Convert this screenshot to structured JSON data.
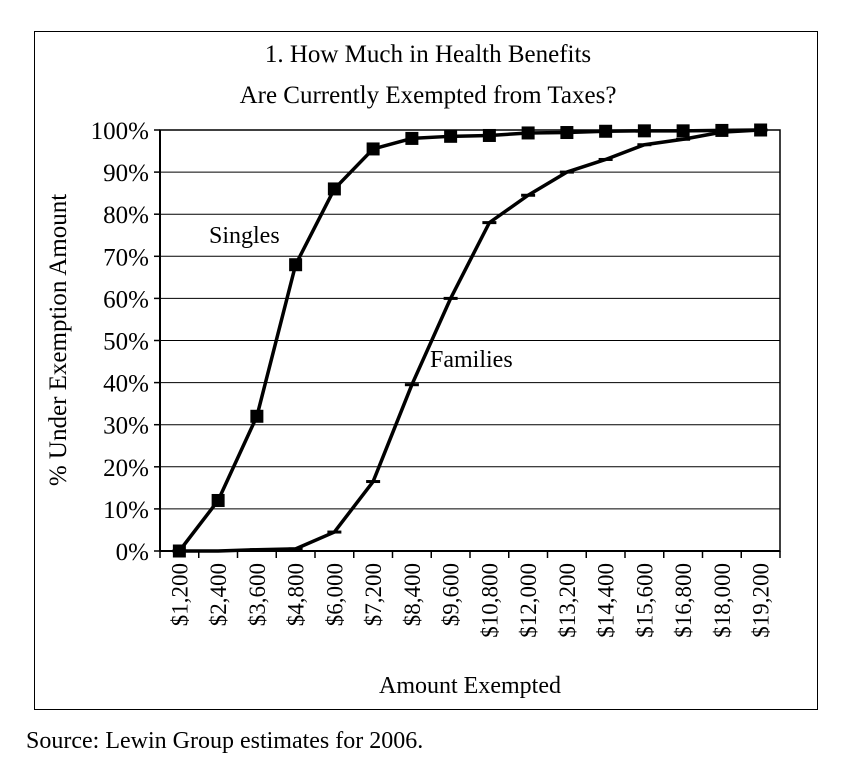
{
  "chart_data": {
    "type": "line",
    "title_lines": [
      "1. How Much in Health Benefits",
      "Are Currently Exempted from Taxes?"
    ],
    "xlabel": "Amount Exempted",
    "ylabel": "% Under Exemption Amount",
    "categories": [
      "$1,200",
      "$2,400",
      "$3,600",
      "$4,800",
      "$6,000",
      "$7,200",
      "$8,400",
      "$9,600",
      "$10,800",
      "$12,000",
      "$13,200",
      "$14,400",
      "$15,600",
      "$16,800",
      "$18,000",
      "$19,200"
    ],
    "ylim": [
      0,
      100
    ],
    "y_ticks": [
      "0%",
      "10%",
      "20%",
      "30%",
      "40%",
      "50%",
      "60%",
      "70%",
      "80%",
      "90%",
      "100%"
    ],
    "grid": true,
    "series": [
      {
        "name": "Singles",
        "marker": "square",
        "values": [
          0,
          12,
          32,
          68,
          86,
          95.5,
          98,
          98.5,
          98.7,
          99.3,
          99.4,
          99.7,
          99.8,
          99.8,
          99.9,
          100
        ]
      },
      {
        "name": "Families",
        "marker": "dash",
        "values": [
          0,
          0,
          0.3,
          0.5,
          4.5,
          16.5,
          39.5,
          60,
          78,
          84.5,
          90,
          93,
          96.5,
          97.8,
          99.5,
          100
        ]
      }
    ],
    "annotations": [
      "Singles",
      "Families"
    ]
  },
  "source": "Source: Lewin Group estimates for 2006."
}
